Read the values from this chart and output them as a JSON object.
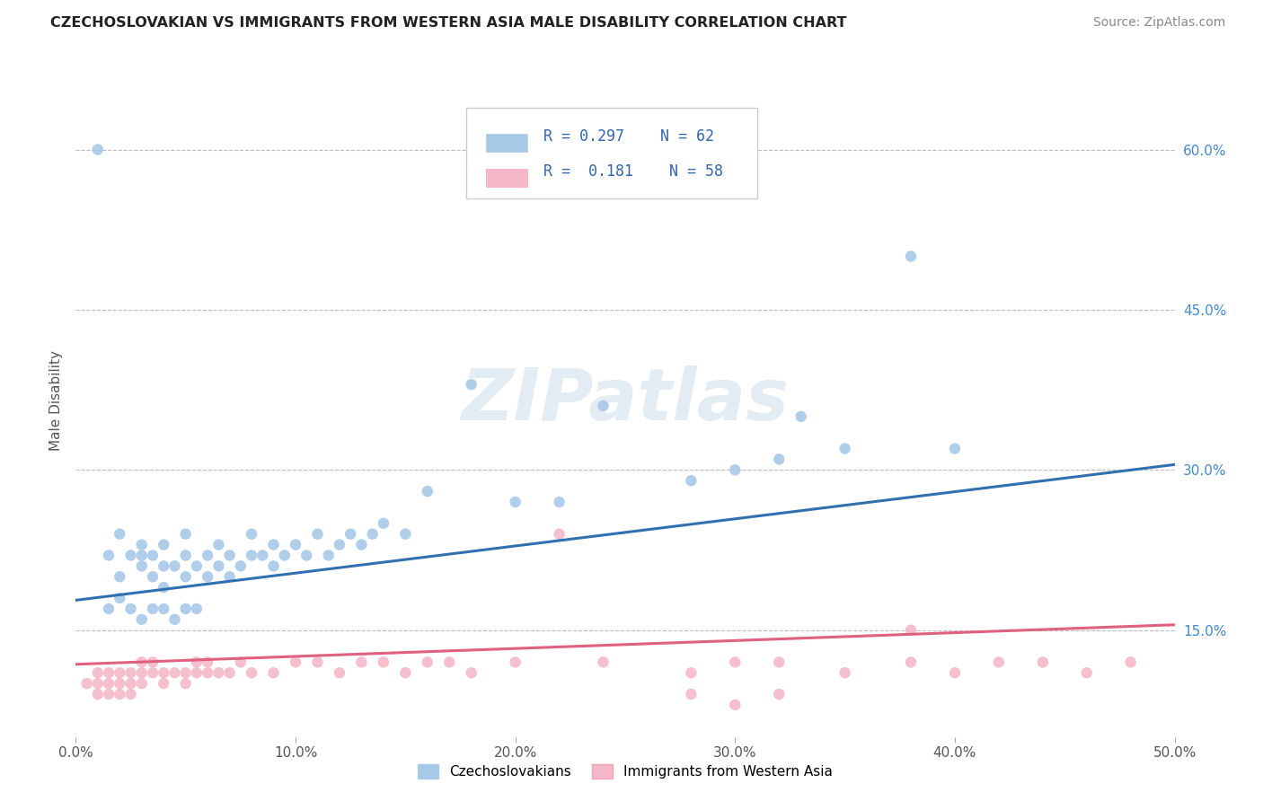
{
  "title": "CZECHOSLOVAKIAN VS IMMIGRANTS FROM WESTERN ASIA MALE DISABILITY CORRELATION CHART",
  "source": "Source: ZipAtlas.com",
  "ylabel": "Male Disability",
  "xlim": [
    0.0,
    0.5
  ],
  "ylim": [
    0.05,
    0.68
  ],
  "xticks": [
    0.0,
    0.1,
    0.2,
    0.3,
    0.4,
    0.5
  ],
  "xticklabels": [
    "0.0%",
    "10.0%",
    "20.0%",
    "30.0%",
    "40.0%",
    "50.0%"
  ],
  "yticks_right": [
    0.15,
    0.3,
    0.45,
    0.6
  ],
  "yticklabels_right": [
    "15.0%",
    "30.0%",
    "45.0%",
    "60.0%"
  ],
  "blue_color": "#a8c8e8",
  "pink_color": "#f4b8c8",
  "line_blue": "#3070b0",
  "line_pink": "#e06080",
  "R_blue": 0.297,
  "N_blue": 62,
  "R_pink": 0.181,
  "N_pink": 58,
  "legend_label_blue": "Czechoslovakians",
  "legend_label_pink": "Immigrants from Western Asia",
  "watermark": "ZIPatlas",
  "grid_color": "#bbbbbb",
  "background_color": "#ffffff",
  "blue_line_x0": 0.0,
  "blue_line_y0": 0.178,
  "blue_line_x1": 0.5,
  "blue_line_y1": 0.305,
  "pink_line_x0": 0.0,
  "pink_line_y0": 0.118,
  "pink_line_x1": 0.5,
  "pink_line_y1": 0.155,
  "blue_scatter_x": [
    0.01,
    0.015,
    0.02,
    0.02,
    0.025,
    0.03,
    0.03,
    0.03,
    0.035,
    0.035,
    0.04,
    0.04,
    0.04,
    0.045,
    0.05,
    0.05,
    0.05,
    0.055,
    0.06,
    0.06,
    0.065,
    0.065,
    0.07,
    0.07,
    0.075,
    0.08,
    0.08,
    0.085,
    0.09,
    0.09,
    0.095,
    0.1,
    0.105,
    0.11,
    0.115,
    0.12,
    0.125,
    0.13,
    0.135,
    0.14,
    0.15,
    0.16,
    0.18,
    0.2,
    0.22,
    0.24,
    0.28,
    0.3,
    0.32,
    0.33,
    0.35,
    0.38,
    0.4,
    0.015,
    0.02,
    0.025,
    0.03,
    0.035,
    0.04,
    0.045,
    0.05,
    0.055
  ],
  "blue_scatter_y": [
    0.6,
    0.22,
    0.2,
    0.24,
    0.22,
    0.21,
    0.23,
    0.22,
    0.2,
    0.22,
    0.19,
    0.21,
    0.23,
    0.21,
    0.2,
    0.22,
    0.24,
    0.21,
    0.2,
    0.22,
    0.21,
    0.23,
    0.2,
    0.22,
    0.21,
    0.22,
    0.24,
    0.22,
    0.21,
    0.23,
    0.22,
    0.23,
    0.22,
    0.24,
    0.22,
    0.23,
    0.24,
    0.23,
    0.24,
    0.25,
    0.24,
    0.28,
    0.38,
    0.27,
    0.27,
    0.36,
    0.29,
    0.3,
    0.31,
    0.35,
    0.32,
    0.5,
    0.32,
    0.17,
    0.18,
    0.17,
    0.16,
    0.17,
    0.17,
    0.16,
    0.17,
    0.17
  ],
  "pink_scatter_x": [
    0.005,
    0.01,
    0.01,
    0.015,
    0.015,
    0.02,
    0.02,
    0.025,
    0.025,
    0.03,
    0.03,
    0.03,
    0.035,
    0.035,
    0.04,
    0.04,
    0.045,
    0.05,
    0.05,
    0.055,
    0.055,
    0.06,
    0.06,
    0.065,
    0.07,
    0.075,
    0.08,
    0.09,
    0.1,
    0.11,
    0.12,
    0.13,
    0.14,
    0.15,
    0.16,
    0.17,
    0.18,
    0.2,
    0.22,
    0.24,
    0.28,
    0.3,
    0.32,
    0.35,
    0.38,
    0.38,
    0.4,
    0.42,
    0.44,
    0.46,
    0.48,
    0.28,
    0.3,
    0.32,
    0.01,
    0.015,
    0.02,
    0.025
  ],
  "pink_scatter_y": [
    0.1,
    0.11,
    0.1,
    0.11,
    0.1,
    0.1,
    0.11,
    0.1,
    0.11,
    0.1,
    0.11,
    0.12,
    0.11,
    0.12,
    0.1,
    0.11,
    0.11,
    0.1,
    0.11,
    0.11,
    0.12,
    0.11,
    0.12,
    0.11,
    0.11,
    0.12,
    0.11,
    0.11,
    0.12,
    0.12,
    0.11,
    0.12,
    0.12,
    0.11,
    0.12,
    0.12,
    0.11,
    0.12,
    0.24,
    0.12,
    0.11,
    0.12,
    0.12,
    0.11,
    0.15,
    0.12,
    0.11,
    0.12,
    0.12,
    0.11,
    0.12,
    0.09,
    0.08,
    0.09,
    0.09,
    0.09,
    0.09,
    0.09
  ]
}
